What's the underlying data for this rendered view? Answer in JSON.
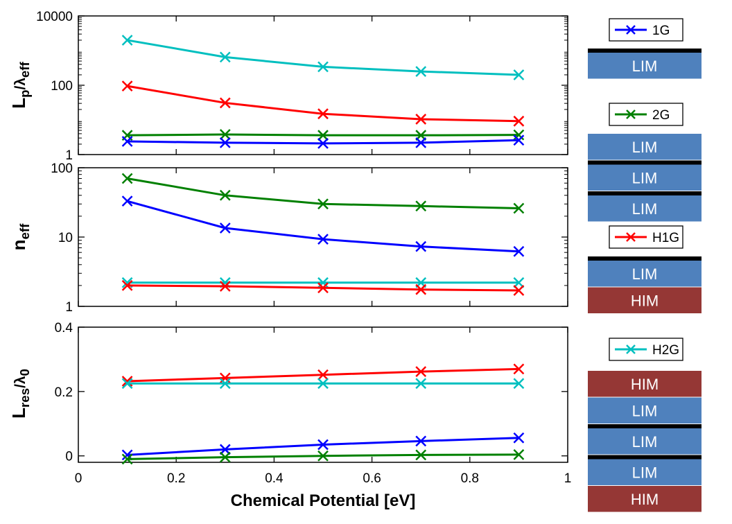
{
  "chart_data": [
    {
      "type": "line",
      "ylabel": {
        "main": "L",
        "sub1": "p",
        "sep": "/λ",
        "sub2": "eff"
      },
      "yscale": "log",
      "ylim": [
        1,
        10000
      ],
      "yticks": [
        1,
        100,
        10000
      ],
      "ytick_labels": [
        "1",
        "100",
        "10000"
      ],
      "xlim": [
        0,
        1
      ],
      "x": [
        0.1,
        0.3,
        0.5,
        0.7,
        0.9
      ],
      "series": [
        {
          "name": "H2G",
          "color": "#00BFBF",
          "values": [
            2000,
            650,
            340,
            250,
            200
          ]
        },
        {
          "name": "H1G",
          "color": "#FF0000",
          "values": [
            95,
            31,
            15,
            10.5,
            9.2
          ]
        },
        {
          "name": "2G",
          "color": "#008000",
          "values": [
            3.6,
            3.8,
            3.6,
            3.6,
            3.7
          ]
        },
        {
          "name": "1G",
          "color": "#0000FF",
          "values": [
            2.4,
            2.2,
            2.1,
            2.2,
            2.6
          ]
        }
      ]
    },
    {
      "type": "line",
      "ylabel": {
        "main": "n",
        "sub1": "eff",
        "sep": "",
        "sub2": ""
      },
      "yscale": "log",
      "ylim": [
        1,
        100
      ],
      "yticks": [
        1,
        10,
        100
      ],
      "ytick_labels": [
        "1",
        "10",
        "100"
      ],
      "xlim": [
        0,
        1
      ],
      "x": [
        0.1,
        0.3,
        0.5,
        0.7,
        0.9
      ],
      "series": [
        {
          "name": "2G",
          "color": "#008000",
          "values": [
            70,
            40,
            30,
            28,
            26
          ]
        },
        {
          "name": "1G",
          "color": "#0000FF",
          "values": [
            33,
            13.5,
            9.3,
            7.3,
            6.2
          ]
        },
        {
          "name": "H2G",
          "color": "#00BFBF",
          "values": [
            2.2,
            2.2,
            2.2,
            2.2,
            2.2
          ]
        },
        {
          "name": "H1G",
          "color": "#FF0000",
          "values": [
            2.0,
            1.95,
            1.85,
            1.75,
            1.7
          ]
        }
      ]
    },
    {
      "type": "line",
      "ylabel": {
        "main": "L",
        "sub1": "res",
        "sep": "/λ",
        "sub2": "0"
      },
      "yscale": "linear",
      "ylim": [
        -0.02,
        0.4
      ],
      "yticks": [
        0,
        0.2,
        0.4
      ],
      "ytick_labels": [
        "0",
        "0.2",
        "0.4"
      ],
      "xlim": [
        0,
        1
      ],
      "xticks": [
        0,
        0.2,
        0.4,
        0.6,
        0.8,
        1
      ],
      "xtick_labels": [
        "0",
        "0.2",
        "0.4",
        "0.6",
        "0.8",
        "1"
      ],
      "xlabel": "Chemical Potential [eV]",
      "x": [
        0.1,
        0.3,
        0.5,
        0.7,
        0.9
      ],
      "series": [
        {
          "name": "H1G",
          "color": "#FF0000",
          "values": [
            0.232,
            0.242,
            0.252,
            0.262,
            0.27
          ]
        },
        {
          "name": "H2G",
          "color": "#00BFBF",
          "values": [
            0.225,
            0.225,
            0.225,
            0.225,
            0.225
          ]
        },
        {
          "name": "1G",
          "color": "#0000FF",
          "values": [
            0.003,
            0.02,
            0.035,
            0.046,
            0.056
          ]
        },
        {
          "name": "2G",
          "color": "#008000",
          "values": [
            -0.01,
            -0.004,
            0.0,
            0.003,
            0.004
          ]
        }
      ]
    }
  ],
  "legend": [
    {
      "label": "1G",
      "color": "#0000FF",
      "layers": [
        "graphene",
        "LIM"
      ]
    },
    {
      "label": "2G",
      "color": "#008000",
      "layers": [
        "LIM",
        "graphene",
        "LIM",
        "graphene",
        "LIM"
      ]
    },
    {
      "label": "H1G",
      "color": "#FF0000",
      "layers": [
        "graphene",
        "LIM",
        "HIM"
      ]
    },
    {
      "label": "H2G",
      "color": "#00BFBF",
      "layers": [
        "HIM",
        "LIM",
        "graphene",
        "LIM",
        "graphene",
        "LIM",
        "HIM"
      ]
    }
  ],
  "layer_colors": {
    "LIM": "#4F81BD",
    "HIM": "#953735",
    "graphene": "#000000"
  }
}
